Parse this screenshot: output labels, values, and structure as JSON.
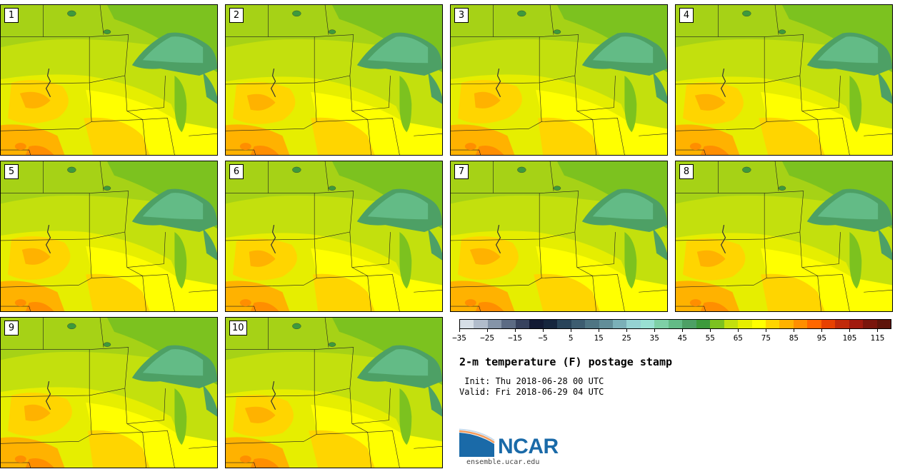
{
  "panels": [
    {
      "label": "1"
    },
    {
      "label": "2"
    },
    {
      "label": "3"
    },
    {
      "label": "4"
    },
    {
      "label": "5"
    },
    {
      "label": "6"
    },
    {
      "label": "7"
    },
    {
      "label": "8"
    },
    {
      "label": "9"
    },
    {
      "label": "10"
    }
  ],
  "colorbar": {
    "colors": [
      "#d6dee6",
      "#b1bccb",
      "#8594a8",
      "#5c6b84",
      "#37425e",
      "#121a34",
      "#16263e",
      "#29445a",
      "#3d5d70",
      "#4f7583",
      "#628e99",
      "#7bb0b8",
      "#95d2d2",
      "#99e0d2",
      "#7ed0a6",
      "#63bb86",
      "#4da065",
      "#3d9a3c",
      "#7cc21f",
      "#c3e00d",
      "#e6ee00",
      "#ffff00",
      "#ffd500",
      "#ffb200",
      "#ff8e00",
      "#ff6700",
      "#e84100",
      "#c12a0a",
      "#a11a0e",
      "#7a150c",
      "#5e140a"
    ],
    "tick_values": [
      "−35",
      "−25",
      "−15",
      "−5",
      "5",
      "15",
      "25",
      "35",
      "45",
      "55",
      "65",
      "75",
      "85",
      "95",
      "105",
      "115"
    ]
  },
  "title": "2-m temperature (F) postage stamp",
  "init_line": " Init: Thu 2018-06-28 00 UTC",
  "valid_line": "Valid: Fri 2018-06-29 04 UTC",
  "logo": {
    "text": "NCAR",
    "site": "ensemble.ucar.edu",
    "color": "#1a6aa8"
  }
}
